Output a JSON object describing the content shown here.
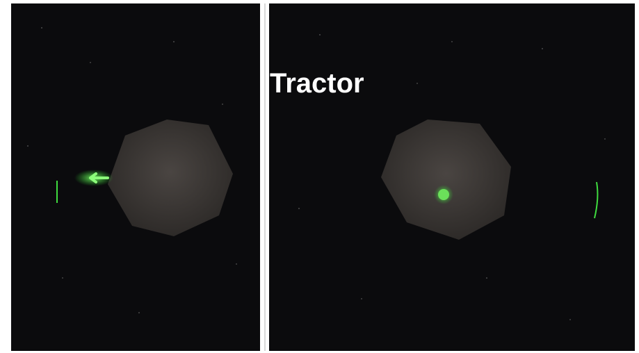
{
  "title": "Tractor"
}
